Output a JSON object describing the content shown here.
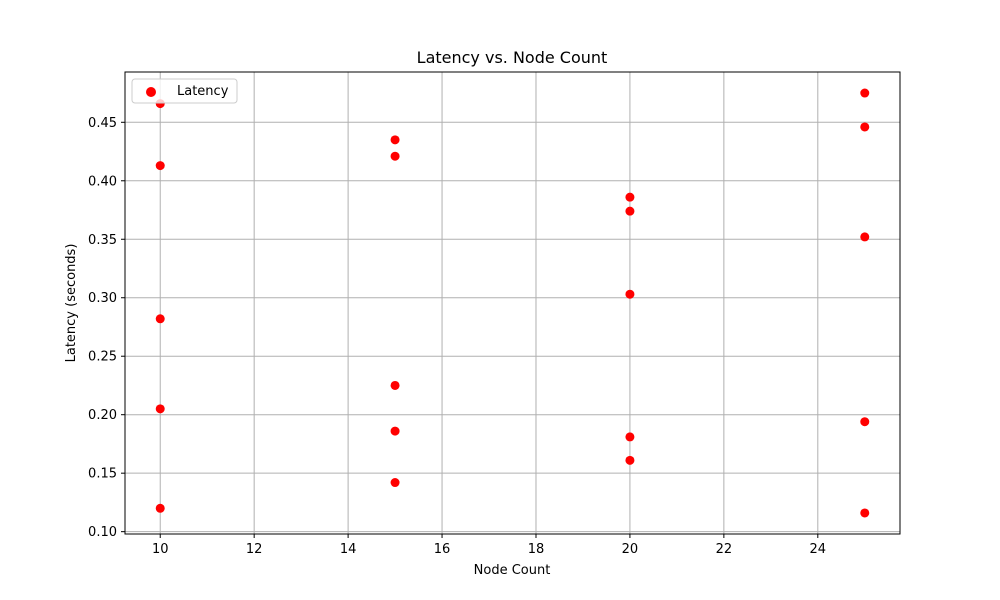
{
  "chart_data": {
    "type": "scatter",
    "title": "Latency vs. Node Count",
    "xlabel": "Node Count",
    "ylabel": "Latency (seconds)",
    "xlim": [
      9.25,
      25.75
    ],
    "ylim": [
      0.098,
      0.493
    ],
    "xticks": [
      10,
      12,
      14,
      16,
      18,
      20,
      22,
      24
    ],
    "yticks": [
      0.1,
      0.15,
      0.2,
      0.25,
      0.3,
      0.35,
      0.4,
      0.45
    ],
    "grid": true,
    "legend_position": "top-left",
    "series": [
      {
        "name": "Latency",
        "color": "#ff0000",
        "x": [
          10,
          10,
          10,
          10,
          10,
          15,
          15,
          15,
          15,
          15,
          20,
          20,
          20,
          20,
          20,
          25,
          25,
          25,
          25,
          25
        ],
        "y": [
          0.466,
          0.413,
          0.282,
          0.205,
          0.12,
          0.435,
          0.421,
          0.225,
          0.186,
          0.142,
          0.386,
          0.374,
          0.303,
          0.181,
          0.161,
          0.475,
          0.446,
          0.352,
          0.194,
          0.116
        ]
      }
    ]
  }
}
